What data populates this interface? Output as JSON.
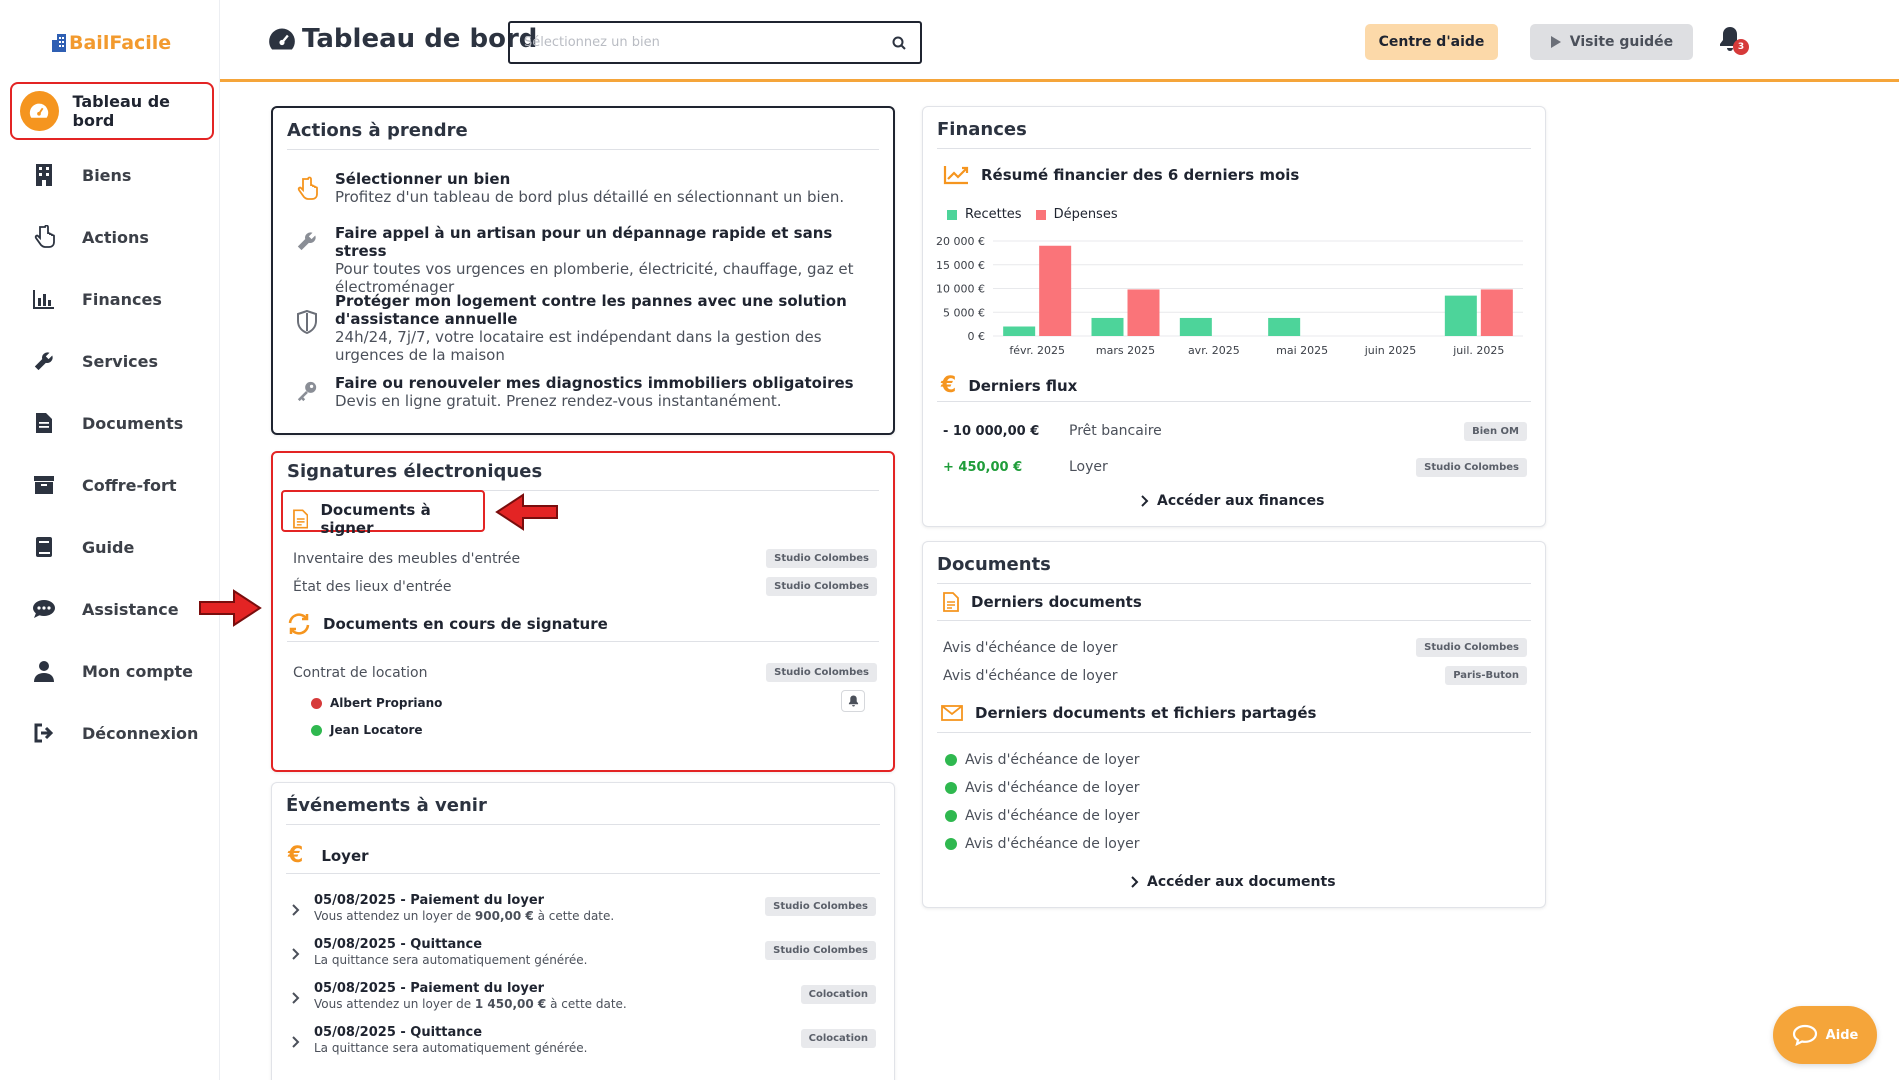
{
  "app": {
    "logo": "BailFacile"
  },
  "sidebar": {
    "items": [
      {
        "label": "Tableau de bord",
        "icon": "gauge-icon"
      },
      {
        "label": "Biens",
        "icon": "building-icon"
      },
      {
        "label": "Actions",
        "icon": "hand-pointer-icon"
      },
      {
        "label": "Finances",
        "icon": "bar-chart-icon"
      },
      {
        "label": "Services",
        "icon": "wrench-icon"
      },
      {
        "label": "Documents",
        "icon": "file-icon"
      },
      {
        "label": "Coffre-fort",
        "icon": "archive-icon"
      },
      {
        "label": "Guide",
        "icon": "book-icon"
      },
      {
        "label": "Assistance",
        "icon": "chat-icon"
      },
      {
        "label": "Mon compte",
        "icon": "user-icon"
      },
      {
        "label": "Déconnexion",
        "icon": "logout-icon"
      }
    ]
  },
  "header": {
    "title": "Tableau de bord",
    "search_placeholder": "Sélectionnez un bien",
    "help_label": "Centre d'aide",
    "tour_label": "Visite guidée",
    "notification_count": "3"
  },
  "actions": {
    "title": "Actions à prendre",
    "items": [
      {
        "title": "Sélectionner un bien",
        "desc": "Profitez d'un tableau de bord plus détaillé en sélectionnant un bien."
      },
      {
        "title": "Faire appel à un artisan pour un dépannage rapide et sans stress",
        "desc": "Pour toutes vos urgences en plomberie, électricité, chauffage, gaz et électroménager"
      },
      {
        "title": "Protéger mon logement contre les pannes avec une solution d'assistance annuelle",
        "desc": "24h/24, 7j/7, votre locataire est indépendant dans la gestion des urgences de la maison"
      },
      {
        "title": "Faire ou renouveler mes diagnostics immobiliers obligatoires",
        "desc": "Devis en ligne gratuit. Prenez rendez-vous instantanément."
      }
    ]
  },
  "signatures": {
    "title": "Signatures électroniques",
    "to_sign_title": "Documents à signer",
    "to_sign": [
      {
        "name": "Inventaire des meubles d'entrée",
        "tag": "Studio Colombes"
      },
      {
        "name": "État des lieux d'entrée",
        "tag": "Studio Colombes"
      }
    ],
    "in_progress_title": "Documents en cours de signature",
    "in_progress": {
      "name": "Contrat de location",
      "tag": "Studio Colombes",
      "signers": [
        {
          "name": "Albert Propriano",
          "status_color": "#d63a3a"
        },
        {
          "name": "Jean Locatore",
          "status_color": "#2fb84f"
        }
      ]
    }
  },
  "events": {
    "title": "Événements à venir",
    "group_title": "Loyer",
    "items": [
      {
        "title": "05/08/2025 - Paiement du loyer",
        "desc_pre": "Vous attendez un loyer de ",
        "desc_amount": "900,00 €",
        "desc_post": " à cette date.",
        "tag": "Studio Colombes"
      },
      {
        "title": "05/08/2025 - Quittance",
        "desc_pre": "La quittance sera automatiquement générée.",
        "desc_amount": "",
        "desc_post": "",
        "tag": "Studio Colombes"
      },
      {
        "title": "05/08/2025 - Paiement du loyer",
        "desc_pre": "Vous attendez un loyer de ",
        "desc_amount": "1 450,00 €",
        "desc_post": " à cette date.",
        "tag": "Colocation"
      },
      {
        "title": "05/08/2025 - Quittance",
        "desc_pre": "La quittance sera automatiquement générée.",
        "desc_amount": "",
        "desc_post": "",
        "tag": "Colocation"
      }
    ]
  },
  "finances": {
    "title": "Finances",
    "summary_title": "Résumé financier des 6 derniers mois",
    "flows_title": "Derniers flux",
    "flows": [
      {
        "amount": "- 10 000,00 €",
        "label": "Prêt bancaire",
        "tag": "Bien OM",
        "color": "#1f2430"
      },
      {
        "amount": "+ 450,00 €",
        "label": "Loyer",
        "tag": "Studio Colombes",
        "color": "#1f9d3a"
      }
    ],
    "link": "Accéder aux finances"
  },
  "chart_data": {
    "type": "bar",
    "categories": [
      "févr. 2025",
      "mars 2025",
      "avr. 2025",
      "mai 2025",
      "juin 2025",
      "juil. 2025"
    ],
    "series": [
      {
        "name": "Recettes",
        "color": "#4dd49a",
        "values": [
          2000,
          3800,
          3800,
          3800,
          0,
          8500
        ]
      },
      {
        "name": "Dépenses",
        "color": "#fa7479",
        "values": [
          19000,
          9800,
          0,
          0,
          0,
          9800
        ]
      }
    ],
    "yticks": [
      "20 000 €",
      "15 000 €",
      "10 000 €",
      "5 000 €",
      "0 €"
    ],
    "ylim": [
      0,
      20000
    ],
    "grid": true,
    "legend": "top-left"
  },
  "documents": {
    "title": "Documents",
    "latest_title": "Derniers documents",
    "latest": [
      {
        "name": "Avis d'échéance de loyer",
        "tag": "Studio Colombes"
      },
      {
        "name": "Avis d'échéance de loyer",
        "tag": "Paris-Buton"
      }
    ],
    "shared_title": "Derniers documents et fichiers partagés",
    "shared": [
      {
        "name": "Avis d'échéance de loyer"
      },
      {
        "name": "Avis d'échéance de loyer"
      },
      {
        "name": "Avis d'échéance de loyer"
      },
      {
        "name": "Avis d'échéance de loyer"
      }
    ],
    "link": "Accéder aux documents"
  },
  "aide_label": "Aide",
  "colors": {
    "accent": "#f5951f",
    "highlight": "#e32424",
    "recettes": "#4dd49a",
    "depenses": "#fa7479"
  }
}
